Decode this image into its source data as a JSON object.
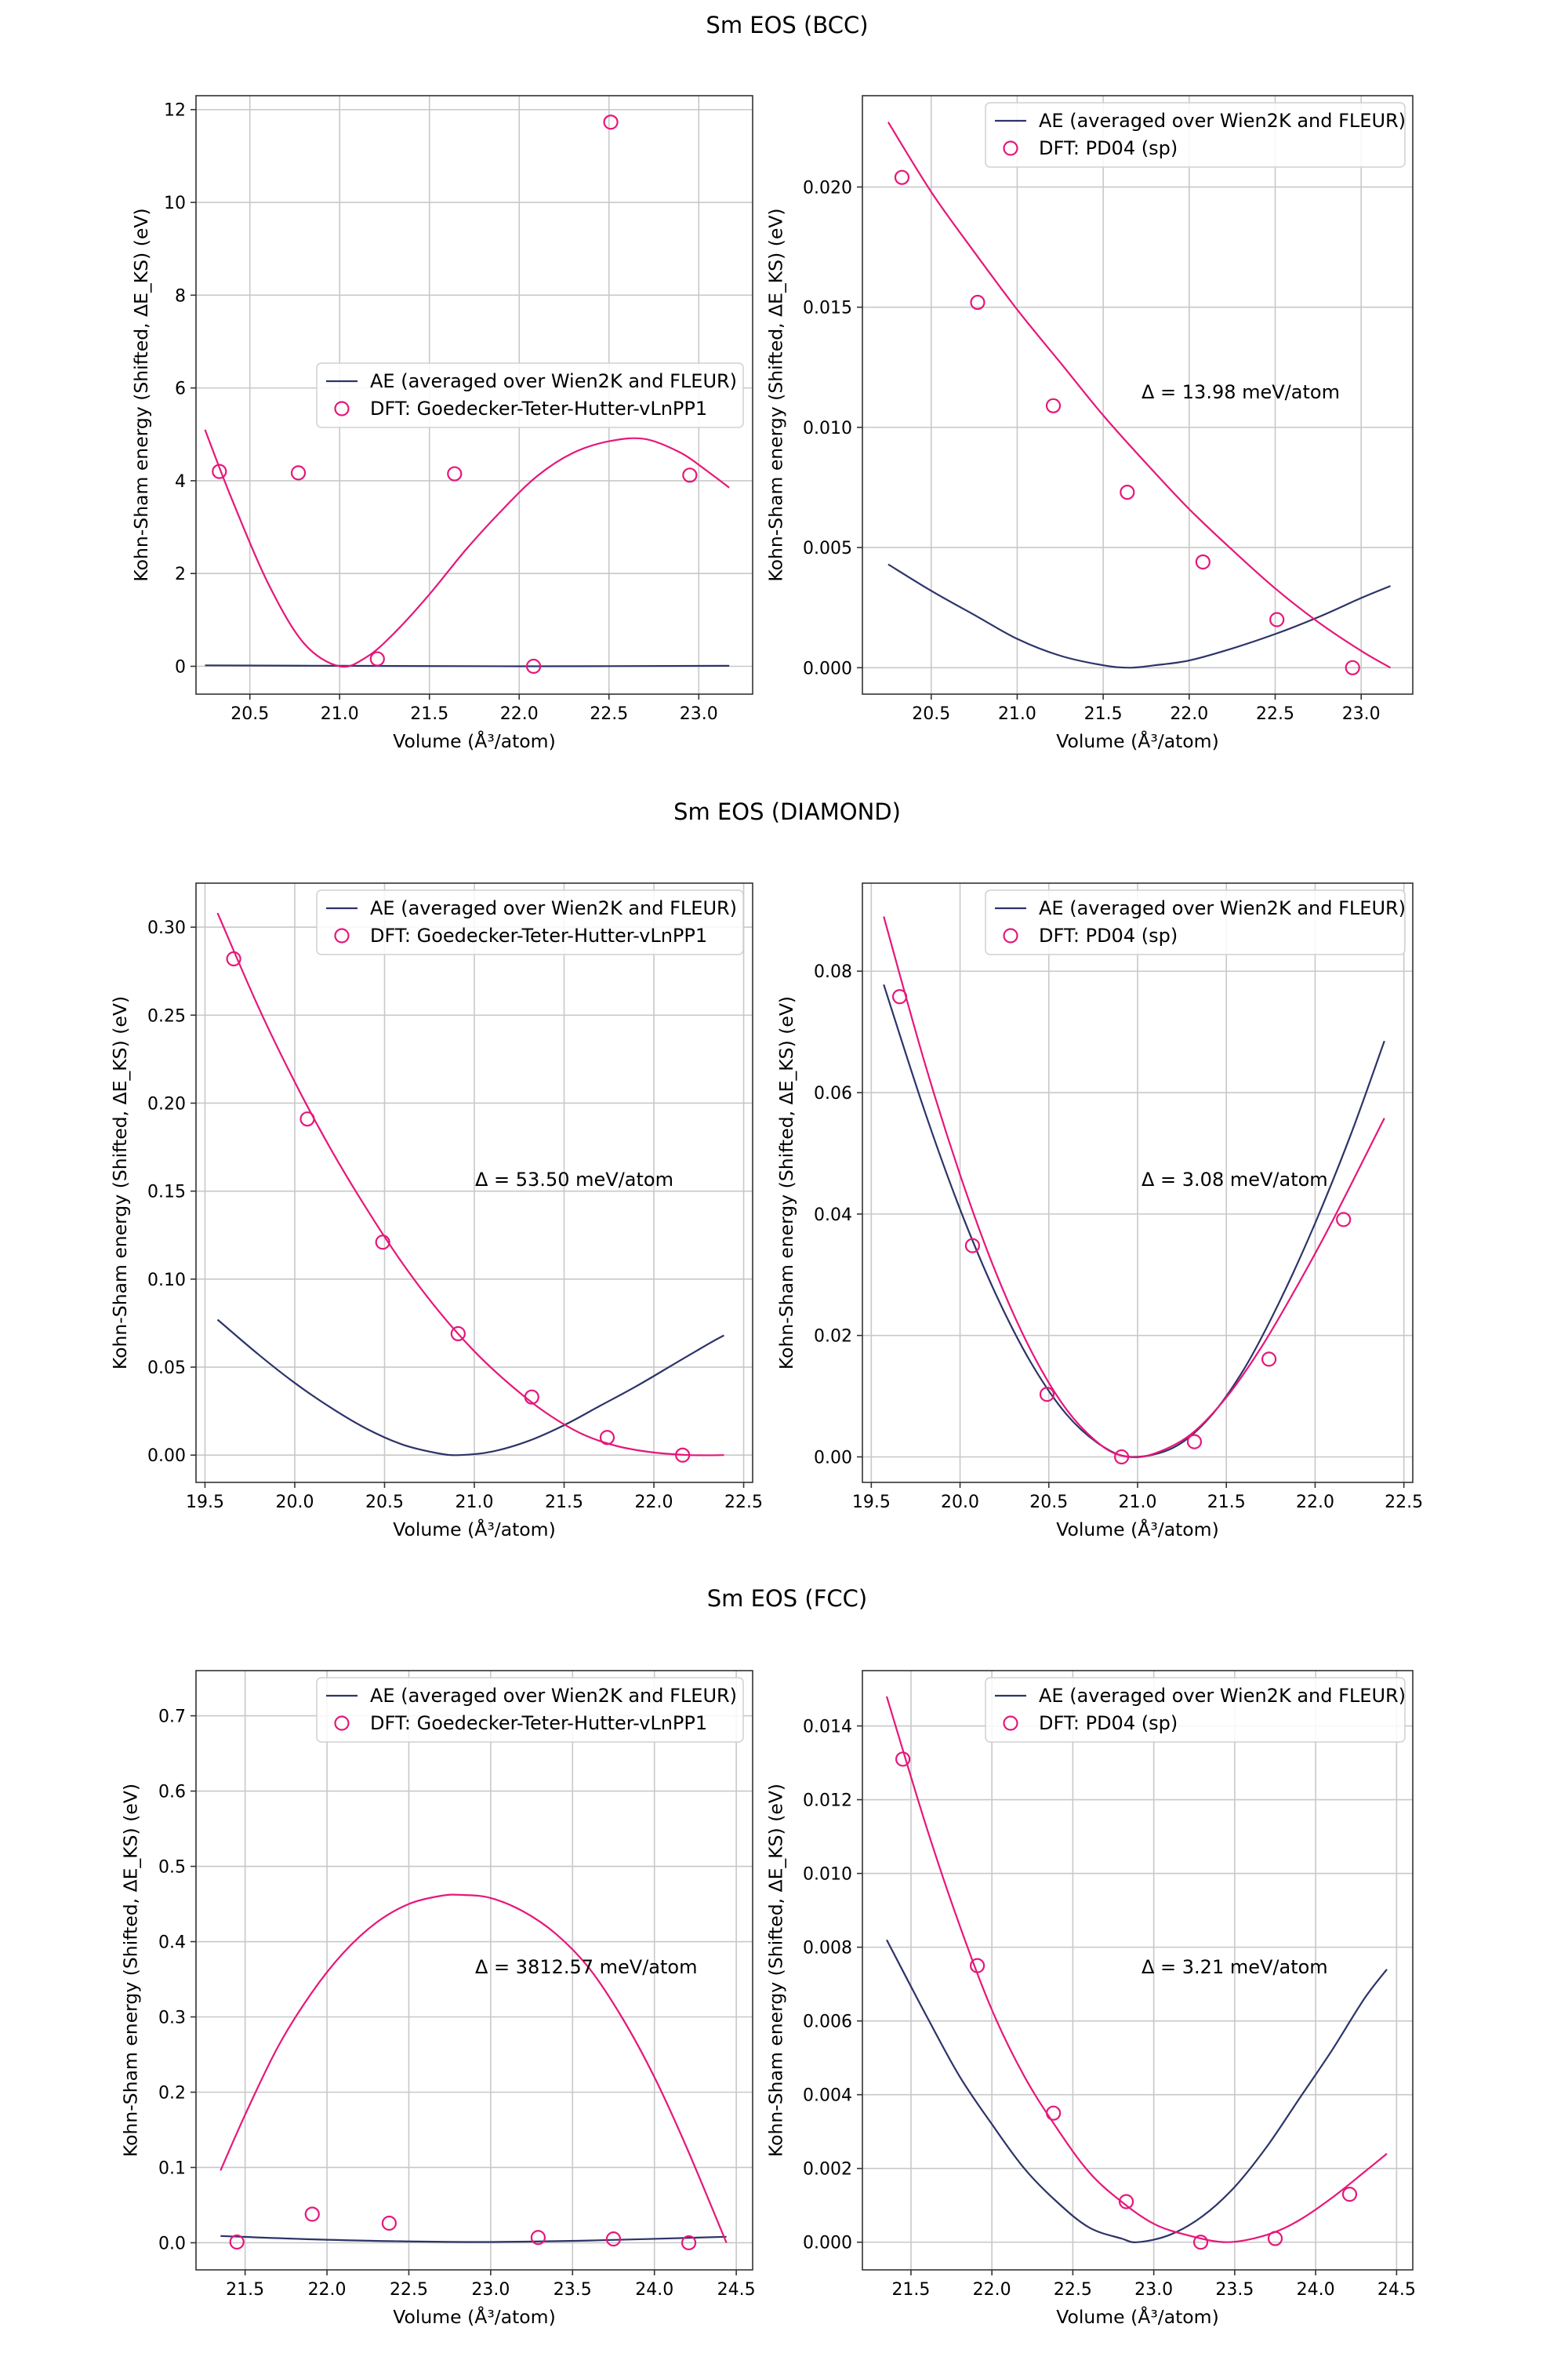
{
  "figure": {
    "rows": [
      {
        "title": "Sm EOS (BCC)"
      },
      {
        "title": "Sm EOS (DIAMOND)"
      },
      {
        "title": "Sm EOS (FCC)"
      }
    ]
  },
  "chart_data": [
    {
      "id": "bcc-gth",
      "type": "line",
      "xlabel": "Volume (Å³/atom)",
      "ylabel": "Kohn-Sham energy (Shifted, ΔE_KS) (eV)",
      "xlim": [
        20.2,
        23.3
      ],
      "ylim": [
        -0.6,
        12.3
      ],
      "xticks": [
        20.5,
        21.0,
        21.5,
        22.0,
        22.5,
        23.0
      ],
      "xtick_labels": [
        "20.5",
        "21.0",
        "21.5",
        "22.0",
        "22.5",
        "23.0"
      ],
      "yticks": [
        0,
        2,
        4,
        6,
        8,
        10,
        12
      ],
      "ytick_labels": [
        "0",
        "2",
        "4",
        "6",
        "8",
        "10",
        "12"
      ],
      "legend": {
        "position": "center-right",
        "entries": [
          "AE (averaged over Wien2K and FLEUR)",
          "DFT: Goedecker-Teter-Hutter-vLnPP1"
        ]
      },
      "delta_text": "",
      "ae_curve": {
        "x": [
          20.25,
          21.0,
          22.0,
          23.17
        ],
        "y": [
          0.02,
          0.01,
          0.0,
          0.01
        ]
      },
      "dft_curve": {
        "x": [
          20.25,
          20.4,
          20.6,
          20.8,
          21.0,
          21.15,
          21.3,
          21.5,
          21.7,
          21.9,
          22.1,
          22.3,
          22.5,
          22.7,
          22.9,
          23.05,
          23.17
        ],
        "y": [
          5.1,
          3.6,
          1.8,
          0.5,
          0.0,
          0.2,
          0.7,
          1.55,
          2.5,
          3.35,
          4.1,
          4.6,
          4.85,
          4.9,
          4.6,
          4.2,
          3.85
        ]
      },
      "dft_points": {
        "x": [
          20.33,
          20.77,
          21.21,
          21.64,
          22.08,
          22.51,
          22.95
        ],
        "y": [
          4.2,
          4.17,
          0.16,
          4.15,
          0.0,
          11.73,
          4.12
        ]
      }
    },
    {
      "id": "bcc-pd04",
      "type": "line",
      "xlabel": "Volume (Å³/atom)",
      "ylabel": "Kohn-Sham energy (Shifted, ΔE_KS) (eV)",
      "xlim": [
        20.1,
        23.3
      ],
      "ylim": [
        -0.0011,
        0.0238
      ],
      "xticks": [
        20.5,
        21.0,
        21.5,
        22.0,
        22.5,
        23.0
      ],
      "xtick_labels": [
        "20.5",
        "21.0",
        "21.5",
        "22.0",
        "22.5",
        "23.0"
      ],
      "yticks": [
        0.0,
        0.005,
        0.01,
        0.015,
        0.02
      ],
      "ytick_labels": [
        "0.000",
        "0.005",
        "0.010",
        "0.015",
        "0.020"
      ],
      "legend": {
        "position": "upper-right",
        "entries": [
          "AE (averaged over Wien2K and FLEUR)",
          "DFT: PD04 (sp)"
        ]
      },
      "delta_text": "Δ = 13.98 meV/atom",
      "ae_curve": {
        "x": [
          20.25,
          20.5,
          20.75,
          21.0,
          21.25,
          21.5,
          21.65,
          21.8,
          22.0,
          22.25,
          22.5,
          22.75,
          23.0,
          23.17
        ],
        "y": [
          0.0043,
          0.0032,
          0.0022,
          0.0012,
          0.0005,
          0.0001,
          0.0,
          0.0001,
          0.0003,
          0.0008,
          0.0014,
          0.0021,
          0.0029,
          0.0034
        ]
      },
      "dft_curve": {
        "x": [
          20.25,
          20.5,
          20.75,
          21.0,
          21.25,
          21.5,
          21.75,
          22.0,
          22.25,
          22.5,
          22.75,
          23.0,
          23.17
        ],
        "y": [
          0.0227,
          0.0198,
          0.0173,
          0.0149,
          0.0127,
          0.0105,
          0.0085,
          0.0066,
          0.0049,
          0.0033,
          0.0019,
          0.0007,
          0.0
        ]
      },
      "dft_points": {
        "x": [
          20.33,
          20.77,
          21.21,
          21.64,
          22.08,
          22.51,
          22.95
        ],
        "y": [
          0.0204,
          0.0152,
          0.0109,
          0.0073,
          0.0044,
          0.002,
          0.0
        ]
      }
    },
    {
      "id": "diamond-gth",
      "type": "line",
      "xlabel": "Volume (Å³/atom)",
      "ylabel": "Kohn-Sham energy (Shifted, ΔE_KS) (eV)",
      "xlim": [
        19.45,
        22.55
      ],
      "ylim": [
        -0.0155,
        0.325
      ],
      "xticks": [
        19.5,
        20.0,
        20.5,
        21.0,
        21.5,
        22.0,
        22.5
      ],
      "xtick_labels": [
        "19.5",
        "20.0",
        "20.5",
        "21.0",
        "21.5",
        "22.0",
        "22.5"
      ],
      "yticks": [
        0.0,
        0.05,
        0.1,
        0.15,
        0.2,
        0.25,
        0.3
      ],
      "ytick_labels": [
        "0.00",
        "0.05",
        "0.10",
        "0.15",
        "0.20",
        "0.25",
        "0.30"
      ],
      "legend": {
        "position": "upper-right",
        "entries": [
          "AE (averaged over Wien2K and FLEUR)",
          "DFT: Goedecker-Teter-Hutter-vLnPP1"
        ]
      },
      "delta_text": "Δ = 53.50 meV/atom",
      "ae_curve": {
        "x": [
          19.57,
          19.8,
          20.0,
          20.2,
          20.4,
          20.6,
          20.8,
          20.92,
          21.1,
          21.3,
          21.5,
          21.7,
          21.9,
          22.1,
          22.3,
          22.39
        ],
        "y": [
          0.077,
          0.057,
          0.041,
          0.027,
          0.015,
          0.006,
          0.001,
          0.0,
          0.002,
          0.008,
          0.017,
          0.028,
          0.039,
          0.051,
          0.063,
          0.068
        ]
      },
      "dft_curve": {
        "x": [
          19.57,
          19.8,
          20.0,
          20.2,
          20.4,
          20.6,
          20.8,
          21.0,
          21.2,
          21.4,
          21.6,
          21.8,
          22.0,
          22.2,
          22.39
        ],
        "y": [
          0.308,
          0.254,
          0.212,
          0.174,
          0.14,
          0.109,
          0.082,
          0.059,
          0.04,
          0.024,
          0.012,
          0.005,
          0.0015,
          0.0,
          0.0
        ]
      },
      "dft_points": {
        "x": [
          19.66,
          20.07,
          20.49,
          20.91,
          21.32,
          21.74,
          22.16
        ],
        "y": [
          0.282,
          0.191,
          0.121,
          0.069,
          0.033,
          0.01,
          0.0
        ]
      }
    },
    {
      "id": "diamond-pd04",
      "type": "line",
      "xlabel": "Volume (Å³/atom)",
      "ylabel": "Kohn-Sham energy (Shifted, ΔE_KS) (eV)",
      "xlim": [
        19.45,
        22.55
      ],
      "ylim": [
        -0.0042,
        0.0945
      ],
      "xticks": [
        19.5,
        20.0,
        20.5,
        21.0,
        21.5,
        22.0,
        22.5
      ],
      "xtick_labels": [
        "19.5",
        "20.0",
        "20.5",
        "21.0",
        "21.5",
        "22.0",
        "22.5"
      ],
      "yticks": [
        0.0,
        0.02,
        0.04,
        0.06,
        0.08
      ],
      "ytick_labels": [
        "0.00",
        "0.02",
        "0.04",
        "0.06",
        "0.08"
      ],
      "legend": {
        "position": "upper-right",
        "entries": [
          "AE (averaged over Wien2K and FLEUR)",
          "DFT: PD04 (sp)"
        ]
      },
      "delta_text": "Δ = 3.08 meV/atom",
      "ae_curve": {
        "x": [
          19.57,
          19.8,
          20.0,
          20.2,
          20.4,
          20.6,
          20.8,
          20.97,
          21.2,
          21.4,
          21.6,
          21.8,
          22.0,
          22.2,
          22.39
        ],
        "y": [
          0.0778,
          0.057,
          0.0408,
          0.0269,
          0.0155,
          0.007,
          0.0018,
          0.0,
          0.0015,
          0.0063,
          0.0145,
          0.0256,
          0.0385,
          0.053,
          0.0685
        ]
      },
      "dft_curve": {
        "x": [
          19.57,
          19.8,
          20.0,
          20.2,
          20.4,
          20.6,
          20.8,
          20.95,
          21.1,
          21.3,
          21.5,
          21.7,
          21.9,
          22.1,
          22.39
        ],
        "y": [
          0.089,
          0.065,
          0.0465,
          0.0305,
          0.0175,
          0.0078,
          0.0018,
          0.0,
          0.0006,
          0.0037,
          0.0098,
          0.0182,
          0.0282,
          0.039,
          0.0558
        ]
      },
      "dft_points": {
        "x": [
          19.66,
          20.07,
          20.49,
          20.91,
          21.32,
          21.74,
          22.16
        ],
        "y": [
          0.0758,
          0.0348,
          0.0103,
          0.0,
          0.0025,
          0.0161,
          0.0391
        ]
      }
    },
    {
      "id": "fcc-gth",
      "type": "line",
      "xlabel": "Volume (Å³/atom)",
      "ylabel": "Kohn-Sham energy (Shifted, ΔE_KS) (eV)",
      "xlim": [
        21.2,
        24.6
      ],
      "ylim": [
        -0.036,
        0.76
      ],
      "xticks": [
        21.5,
        22.0,
        22.5,
        23.0,
        23.5,
        24.0,
        24.5
      ],
      "xtick_labels": [
        "21.5",
        "22.0",
        "22.5",
        "23.0",
        "23.5",
        "24.0",
        "24.5"
      ],
      "yticks": [
        0.0,
        0.1,
        0.2,
        0.3,
        0.4,
        0.5,
        0.6,
        0.7
      ],
      "ytick_labels": [
        "0.0",
        "0.1",
        "0.2",
        "0.3",
        "0.4",
        "0.5",
        "0.6",
        "0.7"
      ],
      "legend": {
        "position": "upper-right",
        "entries": [
          "AE (averaged over Wien2K and FLEUR)",
          "DFT: Goedecker-Teter-Hutter-vLnPP1"
        ]
      },
      "delta_text": "Δ = 3812.57 meV/atom",
      "ae_curve": {
        "x": [
          21.35,
          22.0,
          22.85,
          23.6,
          24.44
        ],
        "y": [
          0.009,
          0.004,
          0.001,
          0.003,
          0.008
        ]
      },
      "dft_curve": {
        "x": [
          21.35,
          21.5,
          21.7,
          21.9,
          22.1,
          22.3,
          22.5,
          22.7,
          22.83,
          23.0,
          23.2,
          23.4,
          23.6,
          23.8,
          24.0,
          24.2,
          24.44
        ],
        "y": [
          0.096,
          0.17,
          0.26,
          0.33,
          0.385,
          0.425,
          0.45,
          0.461,
          0.462,
          0.458,
          0.44,
          0.41,
          0.365,
          0.3,
          0.22,
          0.125,
          0.0
        ]
      },
      "dft_points": {
        "x": [
          21.45,
          21.91,
          22.38,
          23.29,
          23.75,
          24.21
        ],
        "y": [
          0.001,
          0.038,
          0.026,
          0.007,
          0.005,
          0.0
        ]
      }
    },
    {
      "id": "fcc-pd04",
      "type": "line",
      "xlabel": "Volume (Å³/atom)",
      "ylabel": "Kohn-Sham energy (Shifted, ΔE_KS) (eV)",
      "xlim": [
        21.2,
        24.6
      ],
      "ylim": [
        -0.00075,
        0.0155
      ],
      "xticks": [
        21.5,
        22.0,
        22.5,
        23.0,
        23.5,
        24.0,
        24.5
      ],
      "xtick_labels": [
        "21.5",
        "22.0",
        "22.5",
        "23.0",
        "23.5",
        "24.0",
        "24.5"
      ],
      "yticks": [
        0.0,
        0.002,
        0.004,
        0.006,
        0.008,
        0.01,
        0.012,
        0.014
      ],
      "ytick_labels": [
        "0.000",
        "0.002",
        "0.004",
        "0.006",
        "0.008",
        "0.010",
        "0.012",
        "0.014"
      ],
      "legend": {
        "position": "upper-right",
        "entries": [
          "AE (averaged over Wien2K and FLEUR)",
          "DFT: PD04 (sp)"
        ]
      },
      "delta_text": "Δ = 3.21 meV/atom",
      "ae_curve": {
        "x": [
          21.35,
          21.6,
          21.8,
          22.0,
          22.2,
          22.4,
          22.6,
          22.8,
          22.9,
          23.1,
          23.3,
          23.5,
          23.7,
          23.9,
          24.1,
          24.3,
          24.44
        ],
        "y": [
          0.0082,
          0.0061,
          0.0045,
          0.0032,
          0.002,
          0.0011,
          0.0004,
          0.0001,
          0.0,
          0.0002,
          0.0007,
          0.0015,
          0.0026,
          0.0039,
          0.0052,
          0.0066,
          0.0074
        ]
      },
      "dft_curve": {
        "x": [
          21.35,
          21.6,
          21.8,
          22.0,
          22.2,
          22.4,
          22.6,
          22.8,
          23.0,
          23.2,
          23.45,
          23.7,
          23.9,
          24.1,
          24.3,
          24.44
        ],
        "y": [
          0.0148,
          0.0112,
          0.0086,
          0.0063,
          0.0045,
          0.0031,
          0.0019,
          0.0011,
          0.0005,
          0.0002,
          0.0,
          0.0002,
          0.0006,
          0.0012,
          0.0019,
          0.0024
        ]
      },
      "dft_points": {
        "x": [
          21.45,
          21.91,
          22.38,
          22.83,
          23.29,
          23.75,
          24.21
        ],
        "y": [
          0.0131,
          0.0075,
          0.0035,
          0.0011,
          0.0,
          0.0001,
          0.0013
        ]
      }
    }
  ],
  "colors": {
    "ae": "#2c3468",
    "dft": "#e6177a"
  }
}
